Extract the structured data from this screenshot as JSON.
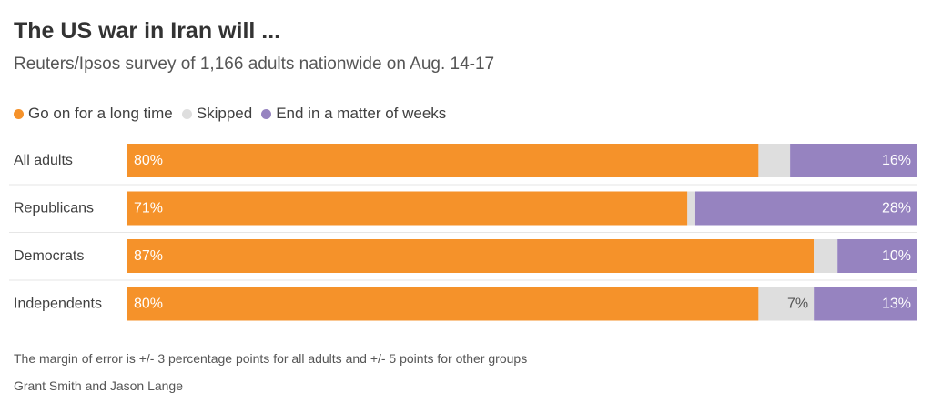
{
  "title": "The US war in Iran will ...",
  "subtitle": "Reuters/Ipsos survey of 1,166 adults nationwide on Aug. 14-17",
  "note": "The margin of error is +/- 3 percentage points for all adults and +/- 5 points for other groups",
  "credit": "Grant Smith and Jason Lange",
  "chart_data": {
    "type": "bar",
    "orientation": "horizontal",
    "stacked": true,
    "percent_scale": [
      0,
      100
    ],
    "legend_position": "top-left",
    "grid": false,
    "categories": [
      "All adults",
      "Republicans",
      "Democrats",
      "Independents"
    ],
    "series": [
      {
        "name": "Go on for a long time",
        "color": "#f5922a",
        "values": [
          80,
          71,
          87,
          80
        ],
        "labels": [
          "80%",
          "71%",
          "87%",
          "80%"
        ]
      },
      {
        "name": "Skipped",
        "color": "#dedede",
        "values": [
          4,
          1,
          3,
          7
        ],
        "labels": [
          "",
          "",
          "",
          "7%"
        ]
      },
      {
        "name": "End in a matter of weeks",
        "color": "#9683c0",
        "values": [
          16,
          28,
          10,
          13
        ],
        "labels": [
          "16%",
          "28%",
          "10%",
          "13%"
        ]
      }
    ]
  }
}
